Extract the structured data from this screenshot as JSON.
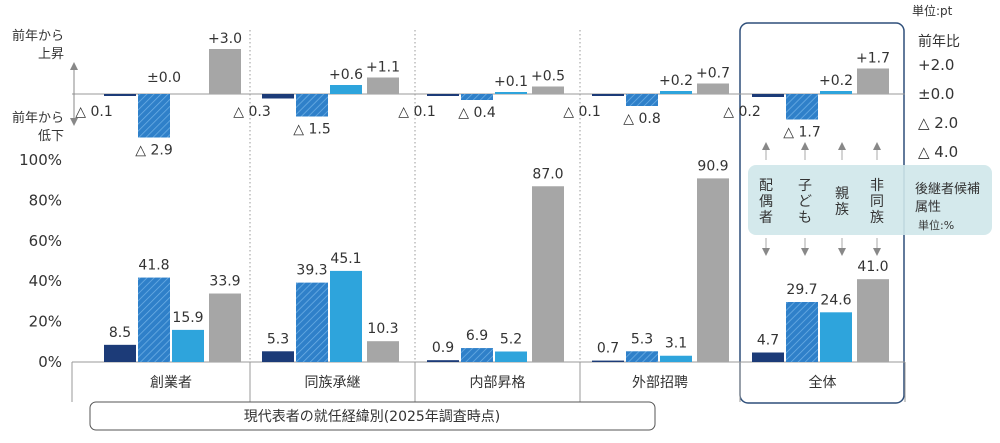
{
  "chart_data": [
    {
      "type": "bar",
      "title": "前年比",
      "unit": "単位:pt",
      "ylabel_up": [
        "前年から",
        "上昇"
      ],
      "ylabel_down": [
        "前年から",
        "低下"
      ],
      "yticks": [
        "+2.0",
        "±0.0",
        "△ 2.0",
        "△ 4.0"
      ],
      "categories": [
        "創業者",
        "同族承継",
        "内部昇格",
        "外部招聘",
        "全体"
      ],
      "series": [
        {
          "name": "配偶者",
          "values": [
            -0.1,
            -0.3,
            -0.1,
            -0.1,
            -0.2
          ],
          "labels": [
            "△ 0.1",
            "△ 0.3",
            "△ 0.1",
            "△ 0.1",
            "△ 0.2"
          ]
        },
        {
          "name": "子ども",
          "values": [
            -2.9,
            -1.5,
            -0.4,
            -0.8,
            -1.7
          ],
          "labels": [
            "△ 2.9",
            "△ 1.5",
            "△ 0.4",
            "△ 0.8",
            "△ 1.7"
          ]
        },
        {
          "name": "親族",
          "values": [
            0.0,
            0.6,
            0.1,
            0.2,
            0.2
          ],
          "labels": [
            "±0.0",
            "+0.6",
            "+0.1",
            "+0.2",
            "+0.2"
          ]
        },
        {
          "name": "非同族",
          "values": [
            3.0,
            1.1,
            0.5,
            0.7,
            1.7
          ],
          "labels": [
            "+3.0",
            "+1.1",
            "+0.5",
            "+0.7",
            "+1.7"
          ]
        }
      ]
    },
    {
      "type": "bar",
      "unit": "単位:%",
      "legend_title": [
        "後継者候補",
        "属性"
      ],
      "ylim": [
        0,
        100
      ],
      "yticks": [
        "0%",
        "20%",
        "40%",
        "60%",
        "80%",
        "100%"
      ],
      "xlabel": "現代表者の就任経緯別(2025年調査時点)",
      "categories": [
        "創業者",
        "同族承継",
        "内部昇格",
        "外部招聘",
        "全体"
      ],
      "series": [
        {
          "name": "配偶者",
          "values": [
            8.5,
            5.3,
            0.9,
            0.7,
            4.7
          ]
        },
        {
          "name": "子ども",
          "values": [
            41.8,
            39.3,
            6.9,
            5.3,
            29.7
          ]
        },
        {
          "name": "親族",
          "values": [
            15.9,
            45.1,
            5.2,
            3.1,
            24.6
          ]
        },
        {
          "name": "非同族",
          "values": [
            33.9,
            10.3,
            87.0,
            90.9,
            41.0
          ]
        }
      ],
      "legend_labels": [
        "配\n偶\n者",
        "子\nど\nも",
        "親\n族",
        "非\n同\n族"
      ]
    }
  ],
  "colors": [
    "#1c3b78",
    "#2f80c9",
    "#2ea4dc",
    "#a6a6a6"
  ],
  "highlight_box": "#2f4f7a",
  "legend_bg": "#cfe7ea"
}
